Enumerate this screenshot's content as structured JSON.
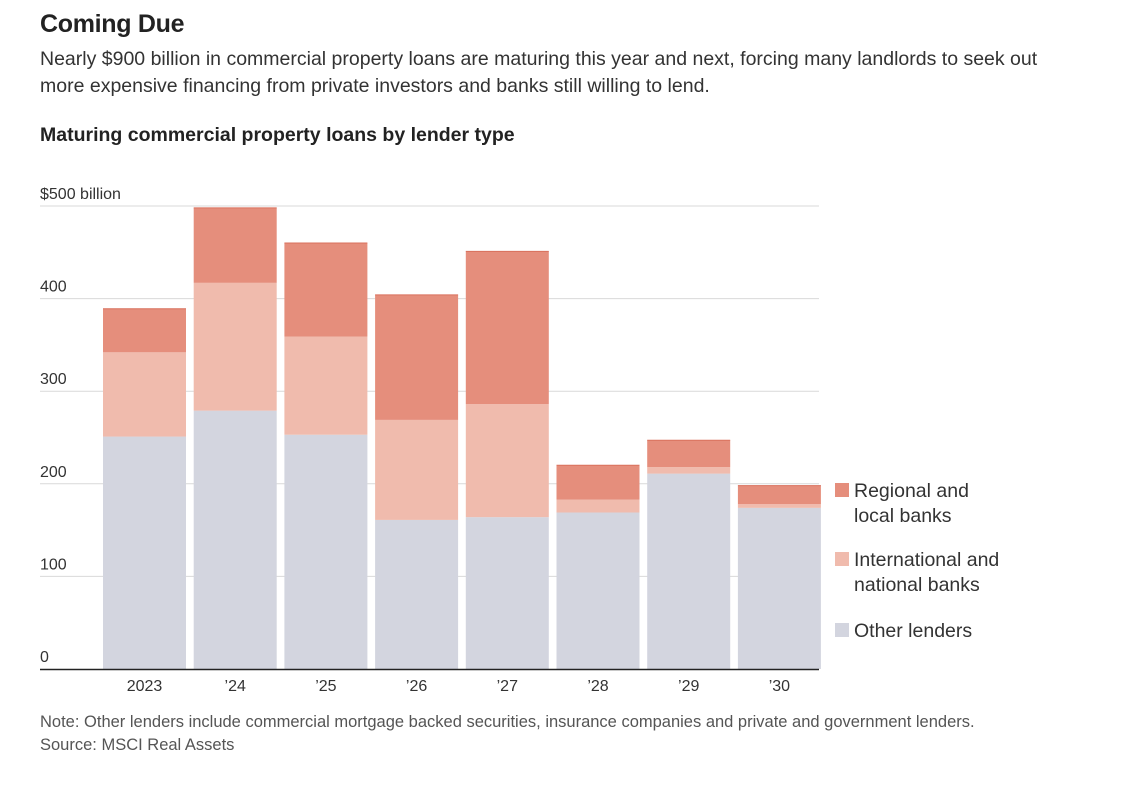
{
  "headline": "Coming Due",
  "dek": "Nearly $900 billion in commercial property loans are maturing this year and next, forcing many landlords to seek out more expensive financing from private investors and banks still willing to lend.",
  "note": "Note: Other lenders include commercial mortgage backed securities, insurance companies and private and government lenders.",
  "source": "Source: MSCI Real Assets",
  "colors": {
    "regional": "#e58e7c",
    "international": "#f0bbad",
    "other": "#d3d5df",
    "grid": "#d9d9d9",
    "axis": "#222222"
  },
  "chart_data": {
    "type": "bar",
    "stacked": true,
    "title": "Maturing commercial property loans by lender type",
    "categories": [
      "2023",
      "’24",
      "’25",
      "’26",
      "’27",
      "’28",
      "’29",
      "’30"
    ],
    "series": [
      {
        "name": "Other lenders",
        "key": "other",
        "values": [
          251,
          279,
          253,
          161,
          164,
          169,
          211,
          174
        ]
      },
      {
        "name": "International and national banks",
        "key": "international",
        "values": [
          91,
          138,
          106,
          108,
          122,
          14,
          7,
          4
        ]
      },
      {
        "name": "Regional and local banks",
        "key": "regional",
        "values": [
          47,
          81,
          101,
          135,
          165,
          37,
          29,
          20
        ]
      }
    ],
    "ylim": [
      0,
      500
    ],
    "yticks": [
      0,
      100,
      200,
      300,
      400,
      500
    ],
    "ytick_labels": [
      "0",
      "100",
      "200",
      "300",
      "400",
      "$500 billion"
    ],
    "xlabel": "",
    "ylabel": "",
    "grid": true,
    "legend_position": "right",
    "legend": [
      {
        "key": "regional",
        "lines": [
          "Regional and",
          "local banks"
        ]
      },
      {
        "key": "international",
        "lines": [
          "International and",
          "national banks"
        ]
      },
      {
        "key": "other",
        "lines": [
          "Other lenders"
        ]
      }
    ]
  }
}
